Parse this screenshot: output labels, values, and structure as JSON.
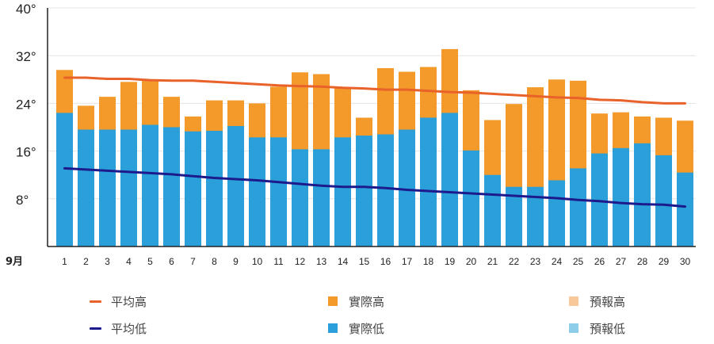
{
  "chart_data": {
    "type": "bar",
    "month_label": "9月",
    "categories": [
      "1",
      "2",
      "3",
      "4",
      "5",
      "6",
      "7",
      "8",
      "9",
      "10",
      "11",
      "12",
      "13",
      "14",
      "15",
      "16",
      "17",
      "18",
      "19",
      "20",
      "21",
      "22",
      "23",
      "24",
      "25",
      "26",
      "27",
      "28",
      "29",
      "30"
    ],
    "yticks": [
      "8°",
      "16°",
      "24°",
      "32°",
      "40°"
    ],
    "ylim": [
      0,
      40
    ],
    "series": [
      {
        "name": "實際高",
        "type": "bar",
        "color": "#f39a2b",
        "values": [
          29.6,
          23.6,
          25.1,
          27.6,
          28,
          25.1,
          21.8,
          24.5,
          24.5,
          24,
          26.8,
          29.2,
          28.9,
          26.7,
          21.6,
          29.9,
          29.3,
          30.1,
          33.1,
          26.2,
          21.2,
          23.9,
          26.7,
          28,
          27.8,
          22.3,
          22.5,
          21.8,
          21.6,
          21.1
        ]
      },
      {
        "name": "實際低",
        "type": "bar",
        "color": "#2b9fd9",
        "values": [
          22.4,
          19.6,
          19.6,
          19.6,
          20.4,
          20,
          19.3,
          19.4,
          20.2,
          18.3,
          18.3,
          16.3,
          16.3,
          18.3,
          18.6,
          18.8,
          19.6,
          21.6,
          22.4,
          16.1,
          12,
          10,
          10,
          11.1,
          13.1,
          15.6,
          16.5,
          17.3,
          15.3,
          12.4
        ]
      },
      {
        "name": "平均高",
        "type": "line",
        "color": "#e8622a",
        "values": [
          28.3,
          28.3,
          28.1,
          28.1,
          27.9,
          27.8,
          27.8,
          27.6,
          27.4,
          27.2,
          27,
          26.9,
          26.8,
          26.6,
          26.5,
          26.3,
          26.3,
          26.1,
          25.9,
          25.8,
          25.6,
          25.4,
          25.2,
          25,
          24.9,
          24.6,
          24.5,
          24.2,
          24,
          24
        ]
      },
      {
        "name": "平均低",
        "type": "line",
        "color": "#1c1a8c",
        "values": [
          13.1,
          12.9,
          12.7,
          12.5,
          12.3,
          12.1,
          11.8,
          11.5,
          11.3,
          11.1,
          10.8,
          10.5,
          10.2,
          10,
          10,
          9.8,
          9.5,
          9.3,
          9.1,
          8.9,
          8.7,
          8.5,
          8.3,
          8.1,
          7.8,
          7.6,
          7.3,
          7.1,
          7,
          6.7
        ]
      }
    ],
    "legend": [
      {
        "label": "平均高",
        "kind": "line",
        "color": "#e8622a"
      },
      {
        "label": "實際高",
        "kind": "box",
        "color": "#f39a2b"
      },
      {
        "label": "預報高",
        "kind": "box",
        "color": "#f8c89a"
      },
      {
        "label": "平均低",
        "kind": "line",
        "color": "#1c1a8c"
      },
      {
        "label": "實際低",
        "kind": "box",
        "color": "#2b9fd9"
      },
      {
        "label": "預報低",
        "kind": "box",
        "color": "#8ecdea"
      }
    ],
    "grid": true
  }
}
